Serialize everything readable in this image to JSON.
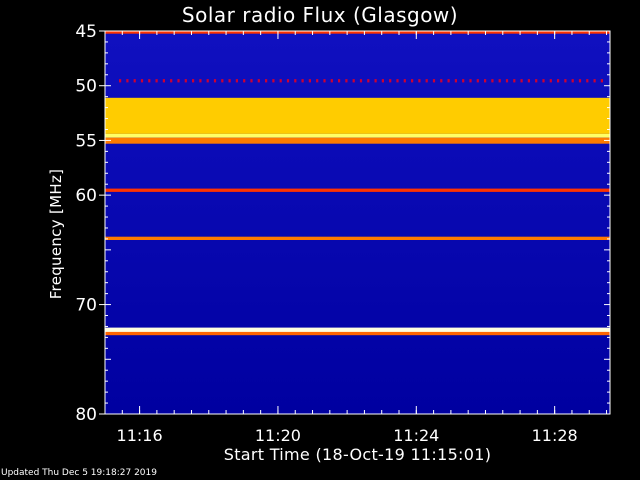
{
  "chart_data": {
    "type": "heatmap",
    "title": "Solar radio Flux (Glasgow)",
    "xlabel": "Start Time (18-Oct-19 11:15:01)",
    "ylabel": "Frequency [MHz]",
    "x_ticks": [
      {
        "label": "11:16",
        "minutes": 1.0
      },
      {
        "label": "11:20",
        "minutes": 5.0
      },
      {
        "label": "11:24",
        "minutes": 9.0
      },
      {
        "label": "11:28",
        "minutes": 13.0
      }
    ],
    "x_range_minutes": [
      0,
      14.6
    ],
    "y_ticks": [
      45,
      50,
      55,
      60,
      70,
      80
    ],
    "ylim": [
      45,
      80
    ],
    "colormap": [
      "#000060",
      "#0000ff",
      "#ff0000",
      "#ffff00",
      "#ffffff"
    ],
    "bands": [
      {
        "f_from": 45.0,
        "f_to": 45.25,
        "intensity": 0.55
      },
      {
        "f_from": 49.4,
        "f_to": 49.7,
        "intensity": 0.45,
        "pattern": "dashed"
      },
      {
        "f_from": 51.1,
        "f_to": 54.4,
        "intensity": 0.7
      },
      {
        "f_from": 54.4,
        "f_to": 54.75,
        "intensity": 0.85
      },
      {
        "f_from": 54.75,
        "f_to": 55.3,
        "intensity": 0.62
      },
      {
        "f_from": 59.4,
        "f_to": 59.7,
        "intensity": 0.55
      },
      {
        "f_from": 63.8,
        "f_to": 64.1,
        "intensity": 0.62
      },
      {
        "f_from": 72.1,
        "f_to": 72.5,
        "intensity": 0.97
      },
      {
        "f_from": 72.5,
        "f_to": 72.8,
        "intensity": 0.6
      }
    ]
  },
  "footer": {
    "updated": "Updated Thu Dec  5 19:18:27 2019"
  }
}
